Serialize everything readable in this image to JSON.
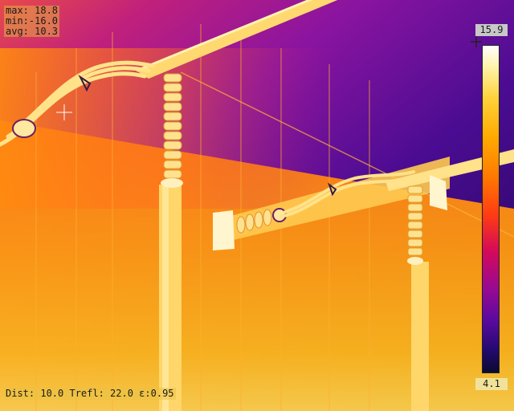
{
  "stats": {
    "max": "max: 18.8",
    "min": "min:-16.0",
    "avg": "avg: 10.3"
  },
  "scale": {
    "max": "15.9",
    "min": "4.1"
  },
  "params": "Dist: 10.0 Trefl: 22.0 ε:0.95",
  "palette": "iron",
  "colors": {
    "hot": "#fff6c8",
    "warm": "#ffae1a",
    "mid": "#ff6a10",
    "cool": "#b21aa0",
    "cold": "#3a0a8a"
  }
}
